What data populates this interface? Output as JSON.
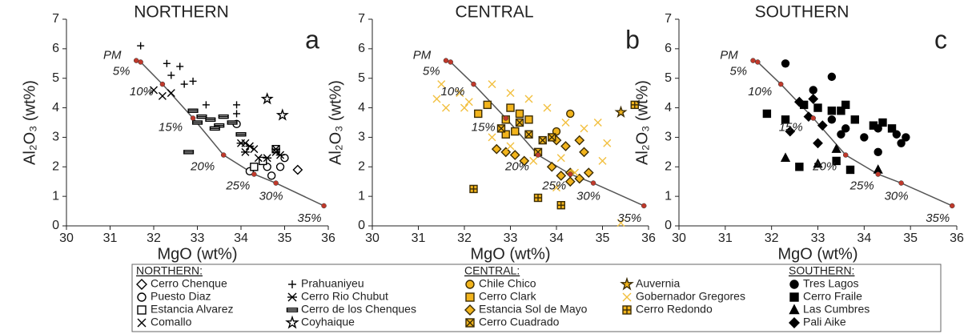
{
  "chart_data": [
    {
      "type": "scatter",
      "title": "NORTHERN",
      "panel_label": "a",
      "xlabel": "MgO (wt%)",
      "ylabel": "Al₂O₃ (wt%)",
      "legend_title": "NORTHERN:",
      "xlim": [
        30,
        36
      ],
      "xticks": [
        30,
        31,
        32,
        33,
        34,
        35,
        36
      ],
      "ylim": [
        0,
        7
      ],
      "yticks": [
        0,
        1,
        2,
        3,
        4,
        5,
        6,
        7
      ],
      "curve": {
        "color": "#555555",
        "dot_color": "#c0392b",
        "x": [
          31.6,
          31.7,
          32.2,
          32.9,
          33.6,
          34.3,
          34.8,
          35.9
        ],
        "y": [
          5.6,
          5.55,
          4.8,
          3.65,
          2.4,
          1.75,
          1.45,
          0.68
        ],
        "labels": [
          "PM",
          "5%",
          "10%",
          "15%",
          "20%",
          "25%",
          "30%",
          "35%"
        ]
      },
      "series": [
        {
          "name": "Cerro Chenque",
          "marker": "diamond",
          "color": "#000000",
          "fill": "#ffffff",
          "x": [
            35.3
          ],
          "y": [
            1.9
          ]
        },
        {
          "name": "Puesto Diaz",
          "marker": "circle",
          "color": "#000000",
          "fill": "#ffffff",
          "x": [
            34.9,
            35.0,
            34.7,
            34.2,
            33.9,
            34.6
          ],
          "y": [
            2.0,
            2.3,
            1.7,
            1.85,
            3.45,
            2.0
          ]
        },
        {
          "name": "Estancia Alvarez",
          "marker": "square",
          "color": "#000000",
          "fill": "#ffffff",
          "x": [
            34.5,
            34.8,
            34.3
          ],
          "y": [
            2.2,
            2.6,
            2.0
          ]
        },
        {
          "name": "Comallo",
          "marker": "x",
          "color": "#000000",
          "fill": "none",
          "x": [
            32.0,
            32.2,
            32.4,
            34.1,
            34.3,
            34.8,
            34.4
          ],
          "y": [
            4.6,
            4.4,
            4.5,
            2.8,
            2.6,
            2.5,
            2.3
          ]
        },
        {
          "name": "Prahuaniyeu",
          "marker": "plus",
          "color": "#000000",
          "fill": "none",
          "x": [
            31.7,
            32.3,
            32.6,
            32.4,
            32.7,
            32.9,
            33.2,
            33.9,
            33.9
          ],
          "y": [
            6.1,
            5.5,
            5.4,
            5.1,
            4.8,
            4.9,
            4.1,
            4.1,
            3.8
          ]
        },
        {
          "name": "Cerro Rio Chubut",
          "marker": "asterisk",
          "color": "#000000",
          "fill": "none",
          "x": [
            34.0,
            34.2,
            34.8,
            34.9,
            34.6,
            34.1
          ],
          "y": [
            2.8,
            2.7,
            2.6,
            2.4,
            2.3,
            2.5
          ]
        },
        {
          "name": "Cerro de los Chenques",
          "marker": "bar",
          "color": "#000000",
          "fill": "#ffffff",
          "x": [
            32.8,
            32.9,
            33.1,
            33.3,
            33.5,
            33.6,
            33.8,
            34.0,
            33.0,
            33.4
          ],
          "y": [
            2.5,
            3.9,
            3.7,
            3.6,
            3.4,
            3.7,
            3.5,
            3.1,
            3.5,
            3.3
          ]
        },
        {
          "name": "Coyhaique",
          "marker": "star",
          "color": "#000000",
          "fill": "#ffffff",
          "x": [
            34.6,
            34.95
          ],
          "y": [
            4.3,
            3.75
          ]
        }
      ]
    },
    {
      "type": "scatter",
      "title": "CENTRAL",
      "panel_label": "b",
      "xlabel": "MgO (wt%)",
      "ylabel": "Al₂O₃ (wt%)",
      "legend_title": "CENTRAL:",
      "xlim": [
        30,
        36
      ],
      "xticks": [
        30,
        31,
        32,
        33,
        34,
        35,
        36
      ],
      "ylim": [
        0,
        7
      ],
      "yticks": [
        0,
        1,
        2,
        3,
        4,
        5,
        6,
        7
      ],
      "curve": {
        "color": "#555555",
        "dot_color": "#c0392b",
        "x": [
          31.6,
          31.7,
          32.2,
          32.9,
          33.6,
          34.3,
          34.8,
          35.9
        ],
        "y": [
          5.6,
          5.55,
          4.8,
          3.65,
          2.4,
          1.75,
          1.45,
          0.68
        ],
        "labels": [
          "PM",
          "5%",
          "10%",
          "15%",
          "20%",
          "25%",
          "30%",
          "35%"
        ]
      },
      "series": [
        {
          "name": "Chile Chico",
          "marker": "circle",
          "color": "#3b2c05",
          "fill": "#f2b41c",
          "x": [
            34.3,
            34.0
          ],
          "y": [
            3.8,
            3.2
          ]
        },
        {
          "name": "Cerro Clark",
          "marker": "square",
          "color": "#3b2c05",
          "fill": "#f2b41c",
          "x": [
            32.3,
            32.5,
            32.9,
            33.0,
            33.2,
            33.4,
            33.1,
            32.9
          ],
          "y": [
            3.8,
            4.1,
            3.6,
            4.0,
            3.8,
            3.6,
            3.2,
            3.1
          ]
        },
        {
          "name": "Estancia Sol de Mayo",
          "marker": "diamond",
          "color": "#3b2c05",
          "fill": "#f2b41c",
          "x": [
            32.7,
            32.9,
            33.1,
            33.3,
            34.0,
            34.2,
            34.5,
            34.1,
            34.3,
            34.5,
            34.7,
            34.3,
            33.9,
            34.6
          ],
          "y": [
            2.6,
            2.5,
            2.4,
            2.2,
            2.9,
            2.7,
            2.9,
            1.7,
            1.8,
            1.6,
            1.8,
            1.5,
            2.0,
            2.5
          ]
        },
        {
          "name": "Cerro Cuadrado",
          "marker": "square-x",
          "color": "#3b2c05",
          "fill": "#f2b41c",
          "x": [
            32.8,
            33.4,
            33.7,
            33.9,
            33.6,
            33.2
          ],
          "y": [
            3.3,
            3.1,
            2.9,
            3.0,
            2.5,
            3.5
          ]
        },
        {
          "name": "Auvernia",
          "marker": "star",
          "color": "#3b2c05",
          "fill": "#f2b41c",
          "x": [
            35.4
          ],
          "y": [
            3.85
          ]
        },
        {
          "name": "Gobernador Gregores",
          "marker": "x",
          "color": "#f2c040",
          "fill": "none",
          "x": [
            31.4,
            31.6,
            31.9,
            32.0,
            31.5,
            32.6,
            32.1,
            33.0,
            33.4,
            33.8,
            34.2,
            34.6,
            34.9,
            35.1,
            33.0,
            33.5,
            32.6,
            34.4,
            35.4,
            34.0,
            35.0,
            34.1
          ],
          "y": [
            4.3,
            4.0,
            4.5,
            4.0,
            4.8,
            4.8,
            4.2,
            4.5,
            4.3,
            4.0,
            3.5,
            3.3,
            3.5,
            2.8,
            2.7,
            2.2,
            3.0,
            1.8,
            0.1,
            1.3,
            2.2,
            2.3
          ]
        },
        {
          "name": "Cerro Redondo",
          "marker": "square-plus",
          "color": "#3b2c05",
          "fill": "#f2b41c",
          "x": [
            32.2,
            33.6,
            34.1,
            35.7
          ],
          "y": [
            1.25,
            0.95,
            0.7,
            4.1
          ]
        }
      ]
    },
    {
      "type": "scatter",
      "title": "SOUTHERN",
      "panel_label": "c",
      "xlabel": "MgO (wt%)",
      "ylabel": "Al₂O₃ (wt%)",
      "legend_title": "SOUTHERN:",
      "xlim": [
        30,
        36
      ],
      "xticks": [
        30,
        31,
        32,
        33,
        34,
        35,
        36
      ],
      "ylim": [
        0,
        7
      ],
      "yticks": [
        0,
        1,
        2,
        3,
        4,
        5,
        6,
        7
      ],
      "curve": {
        "color": "#555555",
        "dot_color": "#c0392b",
        "x": [
          31.6,
          31.7,
          32.2,
          32.9,
          33.6,
          34.3,
          34.8,
          35.9
        ],
        "y": [
          5.6,
          5.55,
          4.8,
          3.65,
          2.4,
          1.75,
          1.45,
          0.68
        ],
        "labels": [
          "PM",
          "5%",
          "10%",
          "15%",
          "20%",
          "25%",
          "30%",
          "35%"
        ]
      },
      "series": [
        {
          "name": "Tres Lagos",
          "marker": "circle",
          "color": "#000000",
          "fill": "#000000",
          "x": [
            32.3,
            32.9,
            33.3,
            33.3,
            33.6,
            34.0,
            34.3,
            34.7,
            34.9,
            34.3,
            33.5,
            34.8
          ],
          "y": [
            5.5,
            4.6,
            5.05,
            3.6,
            3.3,
            3.0,
            3.3,
            3.1,
            3.0,
            2.5,
            3.1,
            2.8
          ]
        },
        {
          "name": "Cerro Fraile",
          "marker": "square",
          "color": "#000000",
          "fill": "#000000",
          "x": [
            31.9,
            32.3,
            32.7,
            33.0,
            33.3,
            33.5,
            33.6,
            33.8,
            34.2,
            34.4,
            34.6,
            33.4,
            33.7,
            32.6
          ],
          "y": [
            3.8,
            3.6,
            4.1,
            4.0,
            3.9,
            3.9,
            4.1,
            3.6,
            3.4,
            3.5,
            3.3,
            2.2,
            1.9,
            2.0
          ]
        },
        {
          "name": "Las Cumbres",
          "marker": "triangle",
          "color": "#000000",
          "fill": "#000000",
          "x": [
            32.3,
            33.0,
            33.4,
            34.3
          ],
          "y": [
            2.3,
            2.1,
            2.6,
            1.9
          ]
        },
        {
          "name": "Pali Aike",
          "marker": "diamond",
          "color": "#000000",
          "fill": "#000000",
          "x": [
            32.4,
            32.6,
            32.9,
            33.1,
            32.8,
            33.0
          ],
          "y": [
            3.2,
            4.2,
            4.3,
            3.4,
            3.7,
            2.8
          ]
        }
      ]
    }
  ]
}
